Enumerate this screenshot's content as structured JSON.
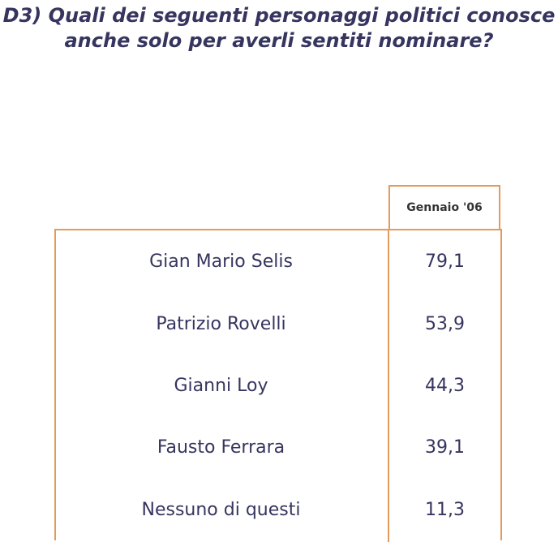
{
  "title": {
    "line1": "D3) Quali dei seguenti personaggi politici conosce",
    "line2": "anche solo per averli sentiti nominare?"
  },
  "table": {
    "column_header": "Gennaio '06",
    "rows": [
      {
        "name": "Gian Mario Selis",
        "value": "79,1"
      },
      {
        "name": "Patrizio Rovelli",
        "value": "53,9"
      },
      {
        "name": "Gianni Loy",
        "value": "44,3"
      },
      {
        "name": "Fausto Ferrara",
        "value": "39,1"
      },
      {
        "name": "Nessuno di questi",
        "value": "11,3"
      }
    ]
  },
  "colors": {
    "title_text": "#36355f",
    "border": "#e39a5a",
    "header_text": "#333333"
  }
}
